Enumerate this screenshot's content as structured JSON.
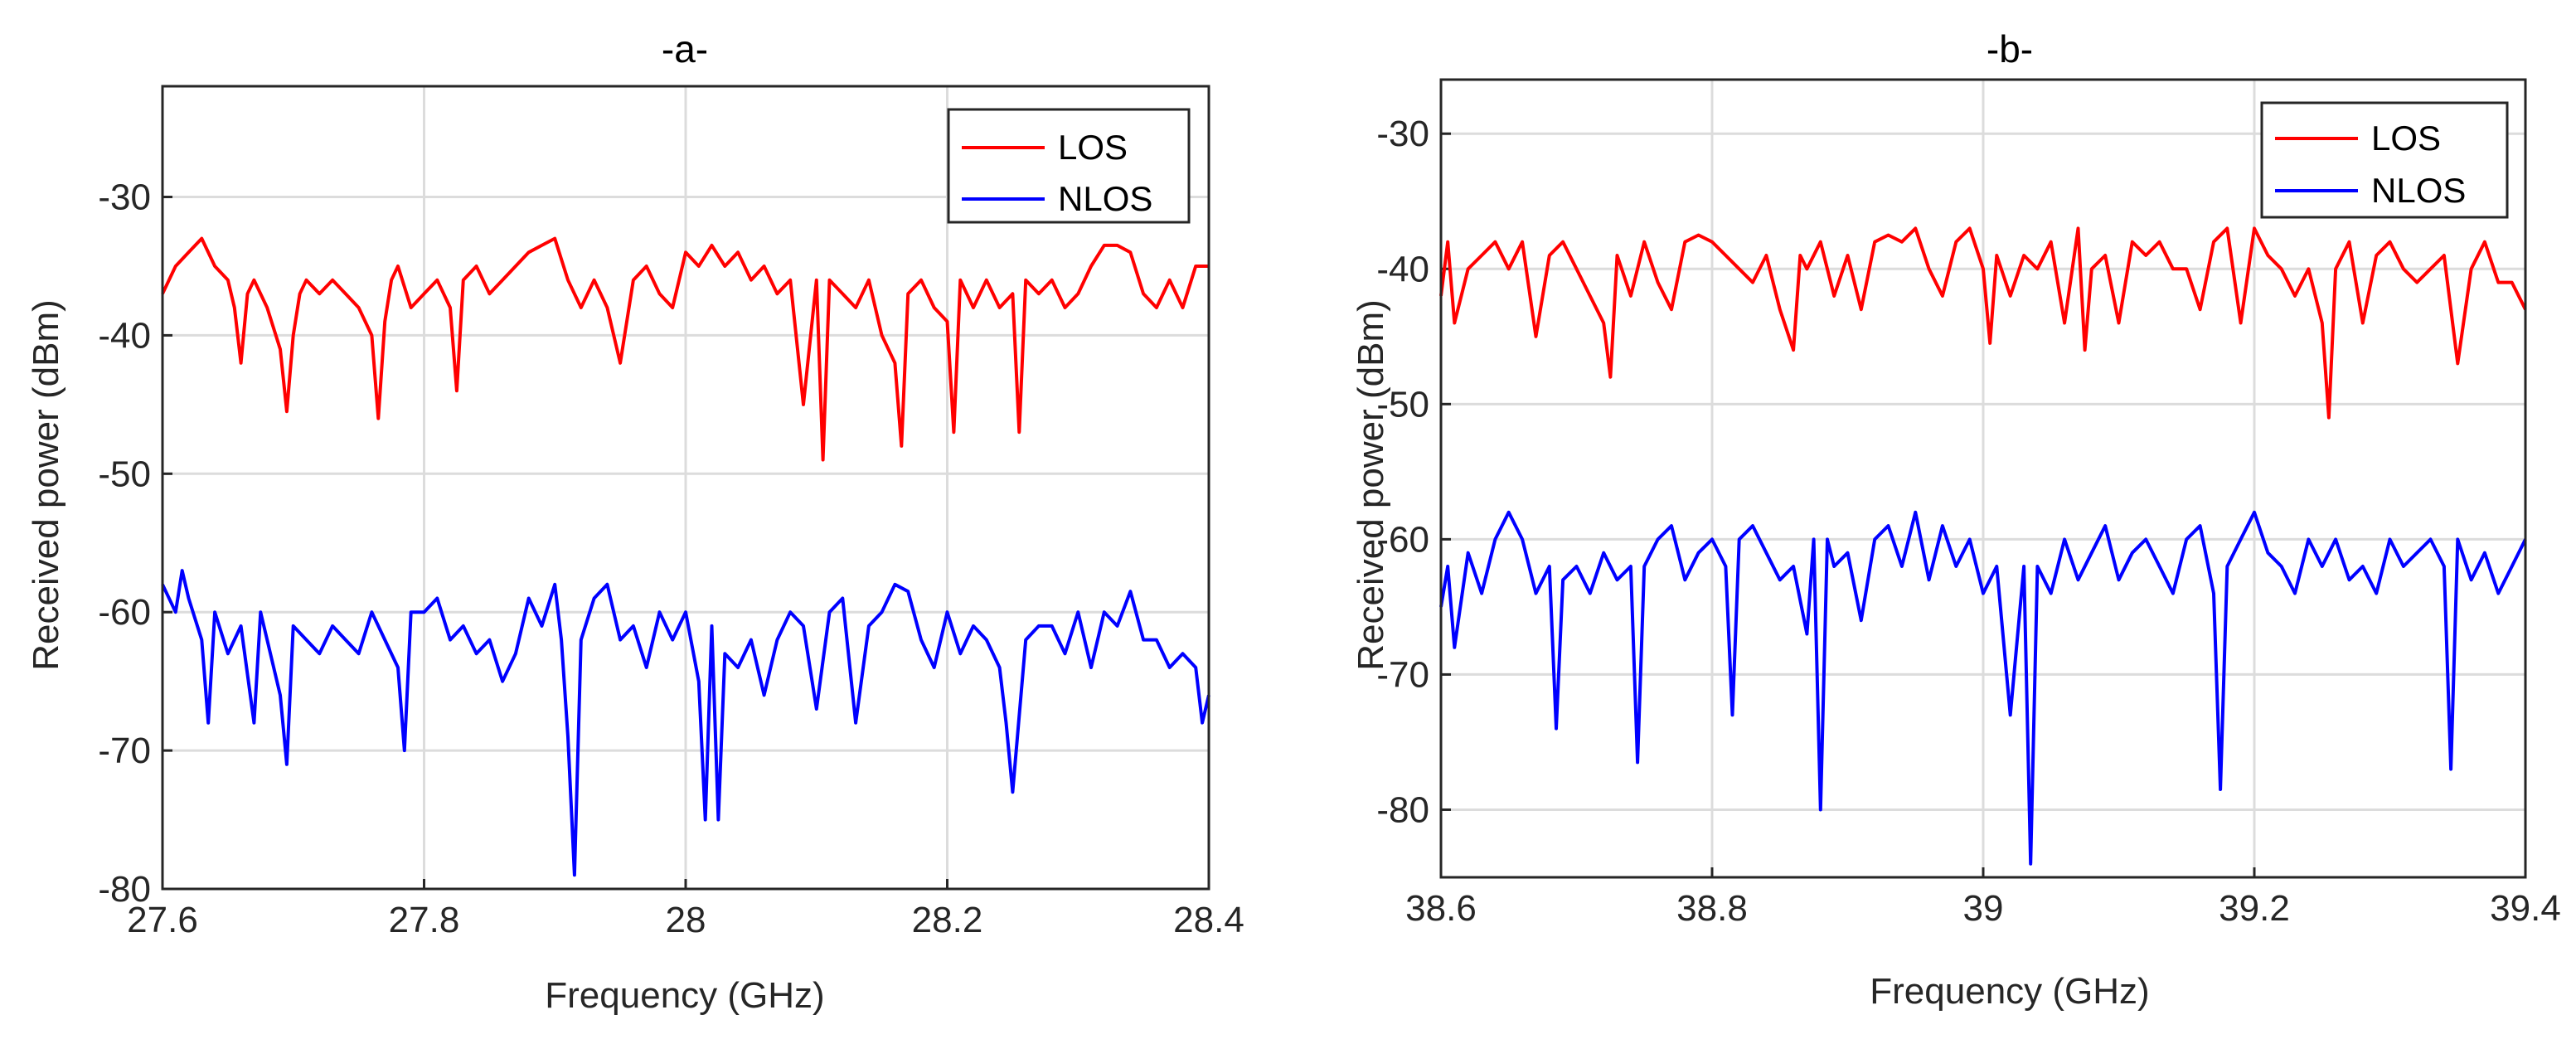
{
  "figure": {
    "xlabel": "Frequency (GHz)",
    "ylabel": "Received power (dBm)"
  },
  "chart_data": [
    {
      "type": "line",
      "title": "-a-",
      "xlabel": "Frequency (GHz)",
      "ylabel": "Received power (dBm)",
      "xlim": [
        27.6,
        28.4
      ],
      "ylim": [
        -80,
        -22
      ],
      "xticks": [
        27.6,
        27.8,
        28.0,
        28.2,
        28.4
      ],
      "xtick_labels": [
        "27.6",
        "27.8",
        "28",
        "28.2",
        "28.4"
      ],
      "yticks": [
        -80,
        -70,
        -60,
        -50,
        -40,
        -30
      ],
      "ytick_labels": [
        "-80",
        "-70",
        "-60",
        "-50",
        "-40",
        "-30"
      ],
      "grid": true,
      "legend_position": "top-right",
      "series": [
        {
          "name": "LOS",
          "color": "#ff0000",
          "x": [
            27.6,
            27.61,
            27.62,
            27.63,
            27.64,
            27.65,
            27.655,
            27.66,
            27.665,
            27.67,
            27.68,
            27.69,
            27.695,
            27.7,
            27.705,
            27.71,
            27.72,
            27.73,
            27.74,
            27.75,
            27.76,
            27.765,
            27.77,
            27.775,
            27.78,
            27.79,
            27.8,
            27.81,
            27.82,
            27.825,
            27.83,
            27.84,
            27.85,
            27.86,
            27.87,
            27.88,
            27.89,
            27.9,
            27.91,
            27.92,
            27.93,
            27.94,
            27.95,
            27.96,
            27.97,
            27.98,
            27.99,
            28.0,
            28.01,
            28.02,
            28.03,
            28.04,
            28.05,
            28.06,
            28.07,
            28.08,
            28.09,
            28.1,
            28.105,
            28.11,
            28.12,
            28.13,
            28.14,
            28.15,
            28.16,
            28.165,
            28.17,
            28.18,
            28.19,
            28.2,
            28.205,
            28.21,
            28.22,
            28.23,
            28.24,
            28.25,
            28.255,
            28.26,
            28.27,
            28.28,
            28.29,
            28.3,
            28.31,
            28.32,
            28.33,
            28.34,
            28.35,
            28.36,
            28.37,
            28.38,
            28.39,
            28.4
          ],
          "y": [
            -37,
            -35,
            -34,
            -33,
            -35,
            -36,
            -38,
            -42,
            -37,
            -36,
            -38,
            -41,
            -45.5,
            -40,
            -37,
            -36,
            -37,
            -36,
            -37,
            -38,
            -40,
            -46,
            -39,
            -36,
            -35,
            -38,
            -37,
            -36,
            -38,
            -44,
            -36,
            -35,
            -37,
            -36,
            -35,
            -34,
            -33.5,
            -33,
            -36,
            -38,
            -36,
            -38,
            -42,
            -36,
            -35,
            -37,
            -38,
            -34,
            -35,
            -33.5,
            -35,
            -34,
            -36,
            -35,
            -37,
            -36,
            -45,
            -36,
            -49,
            -36,
            -37,
            -38,
            -36,
            -40,
            -42,
            -48,
            -37,
            -36,
            -38,
            -39,
            -47,
            -36,
            -38,
            -36,
            -38,
            -37,
            -47,
            -36,
            -37,
            -36,
            -38,
            -37,
            -35,
            -33.5,
            -33.5,
            -34,
            -37,
            -38,
            -36,
            -38,
            -35,
            -35
          ]
        },
        {
          "name": "NLOS",
          "color": "#0000ff",
          "x": [
            27.6,
            27.61,
            27.615,
            27.62,
            27.63,
            27.635,
            27.64,
            27.65,
            27.66,
            27.67,
            27.675,
            27.68,
            27.69,
            27.695,
            27.7,
            27.71,
            27.72,
            27.73,
            27.74,
            27.75,
            27.76,
            27.77,
            27.78,
            27.785,
            27.79,
            27.8,
            27.81,
            27.82,
            27.83,
            27.84,
            27.85,
            27.86,
            27.87,
            27.88,
            27.89,
            27.9,
            27.905,
            27.91,
            27.915,
            27.92,
            27.93,
            27.94,
            27.95,
            27.96,
            27.97,
            27.98,
            27.99,
            28.0,
            28.01,
            28.015,
            28.02,
            28.025,
            28.03,
            28.04,
            28.05,
            28.06,
            28.07,
            28.08,
            28.09,
            28.1,
            28.11,
            28.12,
            28.13,
            28.14,
            28.15,
            28.16,
            28.17,
            28.18,
            28.19,
            28.2,
            28.21,
            28.22,
            28.23,
            28.24,
            28.245,
            28.25,
            28.26,
            28.27,
            28.28,
            28.29,
            28.3,
            28.31,
            28.32,
            28.33,
            28.34,
            28.35,
            28.36,
            28.37,
            28.38,
            28.39,
            28.395,
            28.4
          ],
          "y": [
            -58,
            -60,
            -57,
            -59,
            -62,
            -68,
            -60,
            -63,
            -61,
            -68,
            -60,
            -62,
            -66,
            -71,
            -61,
            -62,
            -63,
            -61,
            -62,
            -63,
            -60,
            -62,
            -64,
            -70,
            -60,
            -60,
            -59,
            -62,
            -61,
            -63,
            -62,
            -65,
            -63,
            -59,
            -61,
            -58,
            -62,
            -69,
            -79,
            -62,
            -59,
            -58,
            -62,
            -61,
            -64,
            -60,
            -62,
            -60,
            -65,
            -75,
            -61,
            -75,
            -63,
            -64,
            -62,
            -66,
            -62,
            -60,
            -61,
            -67,
            -60,
            -59,
            -68,
            -61,
            -60,
            -58,
            -58.5,
            -62,
            -64,
            -60,
            -63,
            -61,
            -62,
            -64,
            -68,
            -73,
            -62,
            -61,
            -61,
            -63,
            -60,
            -64,
            -60,
            -61,
            -58.5,
            -62,
            -62,
            -64,
            -63,
            -64,
            -68,
            -66
          ]
        }
      ]
    },
    {
      "type": "line",
      "title": "-b-",
      "xlabel": "Frequency (GHz)",
      "ylabel": "Received power (dBm)",
      "xlim": [
        38.6,
        39.4
      ],
      "ylim": [
        -85,
        -26
      ],
      "xticks": [
        38.6,
        38.8,
        39.0,
        39.2,
        39.4
      ],
      "xtick_labels": [
        "38.6",
        "38.8",
        "39",
        "39.2",
        "39.4"
      ],
      "yticks": [
        -80,
        -70,
        -60,
        -50,
        -40,
        -30
      ],
      "ytick_labels": [
        "-80",
        "-70",
        "-60",
        "-50",
        "-40",
        "-30"
      ],
      "grid": true,
      "legend_position": "top-right",
      "series": [
        {
          "name": "LOS",
          "color": "#ff0000",
          "x": [
            38.6,
            38.605,
            38.61,
            38.62,
            38.63,
            38.64,
            38.65,
            38.66,
            38.67,
            38.68,
            38.69,
            38.7,
            38.71,
            38.72,
            38.725,
            38.73,
            38.74,
            38.75,
            38.76,
            38.77,
            38.78,
            38.79,
            38.8,
            38.81,
            38.82,
            38.83,
            38.84,
            38.85,
            38.86,
            38.865,
            38.87,
            38.88,
            38.89,
            38.9,
            38.91,
            38.92,
            38.93,
            38.94,
            38.95,
            38.96,
            38.97,
            38.98,
            38.99,
            39.0,
            39.005,
            39.01,
            39.02,
            39.03,
            39.04,
            39.05,
            39.06,
            39.07,
            39.075,
            39.08,
            39.09,
            39.1,
            39.11,
            39.12,
            39.13,
            39.14,
            39.15,
            39.16,
            39.17,
            39.18,
            39.19,
            39.2,
            39.21,
            39.22,
            39.23,
            39.24,
            39.25,
            39.255,
            39.26,
            39.27,
            39.28,
            39.29,
            39.3,
            39.31,
            39.32,
            39.33,
            39.34,
            39.35,
            39.36,
            39.37,
            39.38,
            39.39,
            39.4
          ],
          "y": [
            -42,
            -38,
            -44,
            -40,
            -39,
            -38,
            -40,
            -38,
            -45,
            -39,
            -38,
            -40,
            -42,
            -44,
            -48,
            -39,
            -42,
            -38,
            -41,
            -43,
            -38,
            -37.5,
            -38,
            -39,
            -40,
            -41,
            -39,
            -43,
            -46,
            -39,
            -40,
            -38,
            -42,
            -39,
            -43,
            -38,
            -37.5,
            -38,
            -37,
            -40,
            -42,
            -38,
            -37,
            -40,
            -45.5,
            -39,
            -42,
            -39,
            -40,
            -38,
            -44,
            -37,
            -46,
            -40,
            -39,
            -44,
            -38,
            -39,
            -38,
            -40,
            -40,
            -43,
            -38,
            -37,
            -44,
            -37,
            -39,
            -40,
            -42,
            -40,
            -44,
            -51,
            -40,
            -38,
            -44,
            -39,
            -38,
            -40,
            -41,
            -40,
            -39,
            -47,
            -40,
            -38,
            -41,
            -41,
            -43
          ]
        },
        {
          "name": "NLOS",
          "color": "#0000ff",
          "x": [
            38.6,
            38.605,
            38.61,
            38.62,
            38.63,
            38.64,
            38.65,
            38.66,
            38.67,
            38.68,
            38.685,
            38.69,
            38.7,
            38.71,
            38.72,
            38.73,
            38.74,
            38.745,
            38.75,
            38.76,
            38.77,
            38.78,
            38.79,
            38.8,
            38.81,
            38.815,
            38.82,
            38.83,
            38.84,
            38.85,
            38.86,
            38.87,
            38.875,
            38.88,
            38.885,
            38.89,
            38.9,
            38.91,
            38.92,
            38.93,
            38.94,
            38.95,
            38.96,
            38.97,
            38.98,
            38.99,
            39.0,
            39.01,
            39.02,
            39.03,
            39.035,
            39.04,
            39.05,
            39.06,
            39.07,
            39.08,
            39.09,
            39.1,
            39.11,
            39.12,
            39.13,
            39.14,
            39.15,
            39.16,
            39.17,
            39.175,
            39.18,
            39.19,
            39.2,
            39.21,
            39.22,
            39.23,
            39.24,
            39.25,
            39.26,
            39.27,
            39.28,
            39.29,
            39.3,
            39.31,
            39.32,
            39.33,
            39.34,
            39.345,
            39.35,
            39.36,
            39.37,
            39.38,
            39.39,
            39.4
          ],
          "y": [
            -65,
            -62,
            -68,
            -61,
            -64,
            -60,
            -58,
            -60,
            -64,
            -62,
            -74,
            -63,
            -62,
            -64,
            -61,
            -63,
            -62,
            -76.5,
            -62,
            -60,
            -59,
            -63,
            -61,
            -60,
            -62,
            -73,
            -60,
            -59,
            -61,
            -63,
            -62,
            -67,
            -60,
            -80,
            -60,
            -62,
            -61,
            -66,
            -60,
            -59,
            -62,
            -58,
            -63,
            -59,
            -62,
            -60,
            -64,
            -62,
            -73,
            -62,
            -84,
            -62,
            -64,
            -60,
            -63,
            -61,
            -59,
            -63,
            -61,
            -60,
            -62,
            -64,
            -60,
            -59,
            -64,
            -78.5,
            -62,
            -60,
            -58,
            -61,
            -62,
            -64,
            -60,
            -62,
            -60,
            -63,
            -62,
            -64,
            -60,
            -62,
            -61,
            -60,
            -62,
            -77,
            -60,
            -63,
            -61,
            -64,
            -62,
            -60
          ]
        }
      ]
    }
  ]
}
